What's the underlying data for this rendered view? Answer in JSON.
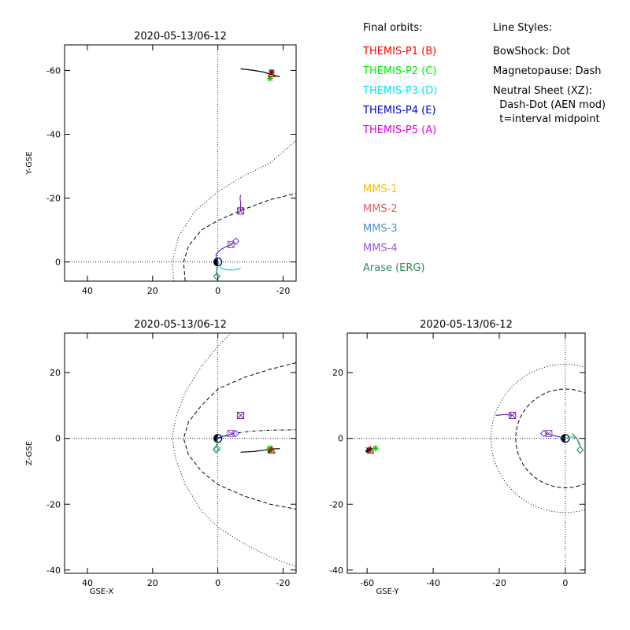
{
  "chart_data": [
    {
      "type": "scatter",
      "title": "2020-05-13/06-12",
      "xlabel": "",
      "ylabel": "Y-GSE",
      "xlim": [
        47,
        -24
      ],
      "ylim": [
        6,
        -68
      ],
      "xticks": [
        40,
        20,
        0,
        -20
      ],
      "xtick_labels": [
        "40",
        "20",
        "0",
        "-20"
      ],
      "yticks": [
        -60,
        -40,
        -20,
        0
      ],
      "ytick_labels": [
        "-60",
        "-40",
        "-20",
        "0"
      ],
      "reference_lines": {
        "x": 0,
        "y": 0
      },
      "boundaries": [
        {
          "name": "BowShock",
          "points": [
            [
              13.5,
              6
            ],
            [
              14,
              0
            ],
            [
              12,
              -8
            ],
            [
              7,
              -16
            ],
            [
              0,
              -22
            ],
            [
              -8,
              -27
            ],
            [
              -16,
              -31
            ],
            [
              -24,
              -38
            ]
          ]
        },
        {
          "name": "Magnetopause",
          "points": [
            [
              10,
              6
            ],
            [
              10.5,
              0
            ],
            [
              9,
              -5
            ],
            [
              5,
              -10
            ],
            [
              0,
              -13
            ],
            [
              -8,
              -16.5
            ],
            [
              -16,
              -19.5
            ],
            [
              -24,
              -21.5
            ]
          ]
        }
      ],
      "series": [
        {
          "color": "#000000",
          "points": [
            [
              -7,
              -60.5
            ],
            [
              -11,
              -60
            ],
            [
              -14,
              -59.5
            ],
            [
              -17,
              -58.5
            ],
            [
              -19,
              -58
            ]
          ],
          "marker": "star",
          "marker_at": [
            -16.5,
            -59.5
          ]
        },
        {
          "color": "#00cc00",
          "points": [],
          "marker": "asterisk",
          "marker_at": [
            -16,
            -57.5
          ]
        },
        {
          "color": "#cc0000",
          "points": [],
          "marker": "triangle",
          "marker_at": [
            -16.5,
            -59
          ]
        },
        {
          "color": "#7a1fa2",
          "points": [
            [
              -7,
              -21
            ],
            [
              -6.8,
              -20
            ],
            [
              -7,
              -18.5
            ],
            [
              -7,
              -17.5
            ],
            [
              -7,
              -16
            ]
          ],
          "marker": "square",
          "marker_at": [
            -7,
            -16
          ]
        },
        {
          "color": "#3333ff",
          "points": [
            [
              0.5,
              -0.5
            ],
            [
              0.5,
              -2.5
            ],
            [
              -1,
              -4
            ],
            [
              -3,
              -5
            ],
            [
              -5,
              -6
            ]
          ],
          "marker": "diamond",
          "marker_at": [
            -5.5,
            -6.5
          ]
        },
        {
          "color": "#9b59b6",
          "points": [],
          "marker": "square",
          "marker_at": [
            -4,
            -5.5
          ]
        },
        {
          "color": "#00cccc",
          "points": [
            [
              0,
              0
            ],
            [
              -1,
              2
            ],
            [
              -3,
              2.5
            ],
            [
              -5,
              2.5
            ],
            [
              -7,
              2
            ]
          ],
          "marker": "diamond",
          "marker_at": [
            0.3,
            4.5
          ]
        },
        {
          "color": "#2e8b57",
          "points": [
            [
              0.3,
              1.5
            ],
            [
              0.5,
              3
            ],
            [
              0.3,
              4.5
            ]
          ],
          "marker": "diamond",
          "marker_at": [
            0.3,
            4.5
          ]
        }
      ]
    },
    {
      "type": "scatter",
      "title": "2020-05-13/06-12",
      "xlabel": "GSE-X",
      "ylabel": "Z-GSE",
      "xlim": [
        47,
        -24
      ],
      "ylim": [
        -41,
        32
      ],
      "xticks": [
        40,
        20,
        0,
        -20
      ],
      "xtick_labels": [
        "40",
        "20",
        "0",
        "-20"
      ],
      "yticks": [
        20,
        0,
        -20,
        -40
      ],
      "ytick_labels": [
        "20",
        "0",
        "-20",
        "-40"
      ],
      "reference_lines": {
        "x": 0,
        "y": 0
      },
      "boundaries": [
        {
          "name": "BowShock",
          "points": [
            [
              -4,
              32
            ],
            [
              0,
              28
            ],
            [
              5,
              22
            ],
            [
              10,
              14
            ],
            [
              13,
              6
            ],
            [
              14,
              0
            ],
            [
              13,
              -6
            ],
            [
              10,
              -14
            ],
            [
              5,
              -22
            ],
            [
              0,
              -27
            ],
            [
              -8,
              -32
            ],
            [
              -16,
              -36
            ],
            [
              -24,
              -39
            ]
          ]
        },
        {
          "name": "Magnetopause",
          "points": [
            [
              -24,
              23
            ],
            [
              -16,
              21
            ],
            [
              -8,
              18.5
            ],
            [
              0,
              15
            ],
            [
              5,
              10
            ],
            [
              9,
              5
            ],
            [
              10.5,
              0
            ],
            [
              9,
              -5
            ],
            [
              5,
              -10
            ],
            [
              0,
              -14
            ],
            [
              -8,
              -17.5
            ],
            [
              -16,
              -20
            ],
            [
              -24,
              -21.5
            ]
          ]
        },
        {
          "name": "Neutral Sheet",
          "points": [
            [
              0,
              0
            ],
            [
              -5,
              1.5
            ],
            [
              -10,
              2.2
            ],
            [
              -16,
              2.5
            ],
            [
              -24,
              2.6
            ]
          ]
        }
      ],
      "series": [
        {
          "color": "#000000",
          "points": [
            [
              -7,
              -4.2
            ],
            [
              -11,
              -4
            ],
            [
              -14,
              -3.6
            ],
            [
              -17,
              -3.2
            ],
            [
              -19,
              -3.1
            ]
          ],
          "marker": "star",
          "marker_at": [
            -16,
            -3.5
          ]
        },
        {
          "color": "#00cc00",
          "points": [],
          "marker": "asterisk",
          "marker_at": [
            -16,
            -3
          ]
        },
        {
          "color": "#cc0000",
          "points": [],
          "marker": "triangle",
          "marker_at": [
            -16.5,
            -3.5
          ]
        },
        {
          "color": "#7a1fa2",
          "points": [],
          "marker": "square",
          "marker_at": [
            -7,
            7
          ]
        },
        {
          "color": "#3333ff",
          "points": [
            [
              0.5,
              0
            ],
            [
              -1,
              0.5
            ],
            [
              -3,
              1
            ],
            [
              -5,
              1.5
            ]
          ],
          "marker": "diamond",
          "marker_at": [
            -5.5,
            1.5
          ]
        },
        {
          "color": "#9b59b6",
          "points": [],
          "marker": "square",
          "marker_at": [
            -4,
            1.5
          ]
        },
        {
          "color": "#00cccc",
          "points": [
            [
              0,
              0
            ],
            [
              0.3,
              -1
            ],
            [
              0.4,
              -2
            ]
          ],
          "marker": "diamond",
          "marker_at": [
            0.3,
            -3
          ]
        },
        {
          "color": "#2e8b57",
          "points": [
            [
              0.3,
              -1
            ],
            [
              0.5,
              -2.5
            ]
          ],
          "marker": "diamond",
          "marker_at": [
            0.5,
            -3.5
          ]
        }
      ]
    },
    {
      "type": "scatter",
      "title": "2020-05-13/06-12",
      "xlabel": "GSE-Y",
      "ylabel": "",
      "xlim": [
        -66,
        6
      ],
      "ylim": [
        -41,
        32
      ],
      "xticks": [
        -60,
        -40,
        -20,
        0
      ],
      "xtick_labels": [
        "-60",
        "-40",
        "-20",
        "0"
      ],
      "yticks": [
        20,
        0,
        -20,
        -40
      ],
      "ytick_labels": [
        "20",
        "0",
        "-20",
        "-40"
      ],
      "reference_lines": {
        "x": 0,
        "y": 0
      },
      "boundaries": [
        {
          "name": "BowShock",
          "shape": "circle",
          "center": [
            0,
            0
          ],
          "radius": 22.5
        },
        {
          "name": "Magnetopause",
          "shape": "circle",
          "center": [
            0,
            0
          ],
          "radius": 15
        }
      ],
      "series": [
        {
          "color": "#000000",
          "points": [
            [
              -60.5,
              -4
            ],
            [
              -59,
              -3.3
            ],
            [
              -58,
              -3
            ]
          ],
          "marker": "star",
          "marker_at": [
            -59.5,
            -3.5
          ]
        },
        {
          "color": "#00cc00",
          "points": [],
          "marker": "asterisk",
          "marker_at": [
            -57.5,
            -3
          ]
        },
        {
          "color": "#cc0000",
          "points": [],
          "marker": "triangle",
          "marker_at": [
            -59,
            -3.5
          ]
        },
        {
          "color": "#7a1fa2",
          "points": [
            [
              -21,
              7
            ],
            [
              -18,
              7.3
            ],
            [
              -16,
              7
            ]
          ],
          "marker": "square",
          "marker_at": [
            -16,
            7
          ]
        },
        {
          "color": "#3333ff",
          "points": [
            [
              0,
              0
            ],
            [
              -2,
              0.5
            ],
            [
              -4,
              1
            ],
            [
              -6,
              1.5
            ]
          ],
          "marker": "diamond",
          "marker_at": [
            -6.5,
            1.5
          ]
        },
        {
          "color": "#9b59b6",
          "points": [],
          "marker": "square",
          "marker_at": [
            -5,
            1.5
          ]
        },
        {
          "color": "#00cccc",
          "points": [
            [
              0,
              0
            ],
            [
              2,
              0.5
            ],
            [
              3.5,
              0
            ],
            [
              4.5,
              -2
            ]
          ],
          "marker": "diamond",
          "marker_at": [
            4.5,
            -3.5
          ]
        },
        {
          "color": "#2e8b57",
          "points": [
            [
              2,
              1.5
            ],
            [
              3.5,
              0
            ],
            [
              4.5,
              -2.5
            ]
          ],
          "marker": "diamond",
          "marker_at": [
            4.5,
            -3.5
          ]
        }
      ]
    }
  ],
  "legend": {
    "orbits_title": "Final orbits:",
    "orbits": [
      {
        "label": "THEMIS-P1 (B)",
        "color": "#ff0000"
      },
      {
        "label": "THEMIS-P2 (C)",
        "color": "#00ee00"
      },
      {
        "label": "THEMIS-P3 (D)",
        "color": "#00e5ee"
      },
      {
        "label": "THEMIS-P4 (E)",
        "color": "#0000cc"
      },
      {
        "label": "THEMIS-P5 (A)",
        "color": "#dd00dd"
      }
    ],
    "styles_title": "Line Styles:",
    "styles": [
      "BowShock: Dot",
      "Magnetopause: Dash",
      "Neutral Sheet (XZ):",
      "  Dash-Dot (AEN mod)",
      "  t=interval midpoint"
    ],
    "missions": [
      {
        "label": "MMS-1",
        "color": "#f5c200"
      },
      {
        "label": "MMS-2",
        "color": "#d9605f"
      },
      {
        "label": "MMS-3",
        "color": "#4a8fd1"
      },
      {
        "label": "MMS-4",
        "color": "#9b59d0"
      },
      {
        "label": "Arase (ERG)",
        "color": "#2e8b57"
      }
    ]
  }
}
